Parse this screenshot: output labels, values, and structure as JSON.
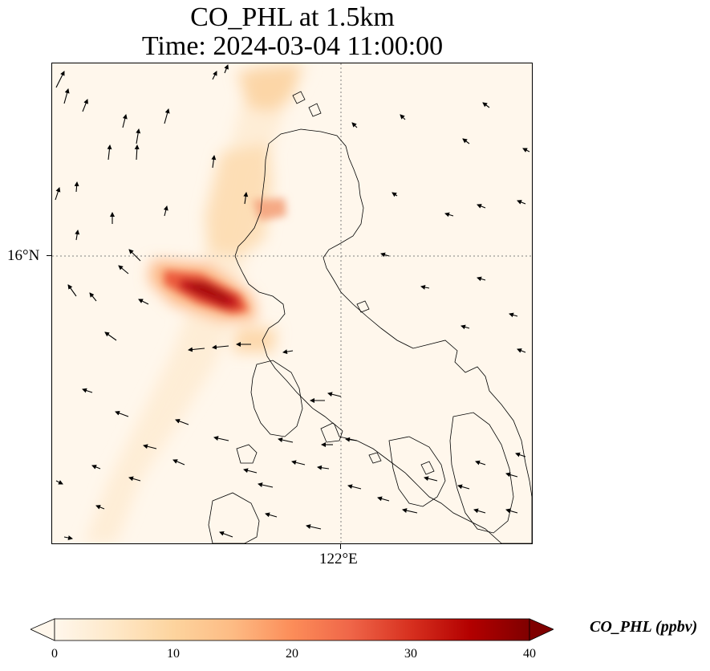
{
  "title_line1": "CO_PHL at 1.5km",
  "title_line2": "Time: 2024-03-04 11:00:00",
  "axes": {
    "lat_label": "16°N",
    "lon_label": "122°E"
  },
  "colorbar": {
    "label": "CO_PHL (ppbv)",
    "min": 0,
    "max": 40,
    "ticks": [
      "0",
      "10",
      "20",
      "30",
      "40"
    ],
    "colormap": "OrRd",
    "extend": "both"
  },
  "colors": {
    "land_outline": "#000000",
    "background": "#fff7ec",
    "gridline": "#808080"
  },
  "map": {
    "projection": "PlateCarree",
    "gridlines": "dotted",
    "grid_lat": 16,
    "grid_lon": 122,
    "features": [
      "coastlines",
      "wind-vectors",
      "co-concentration-field"
    ]
  }
}
